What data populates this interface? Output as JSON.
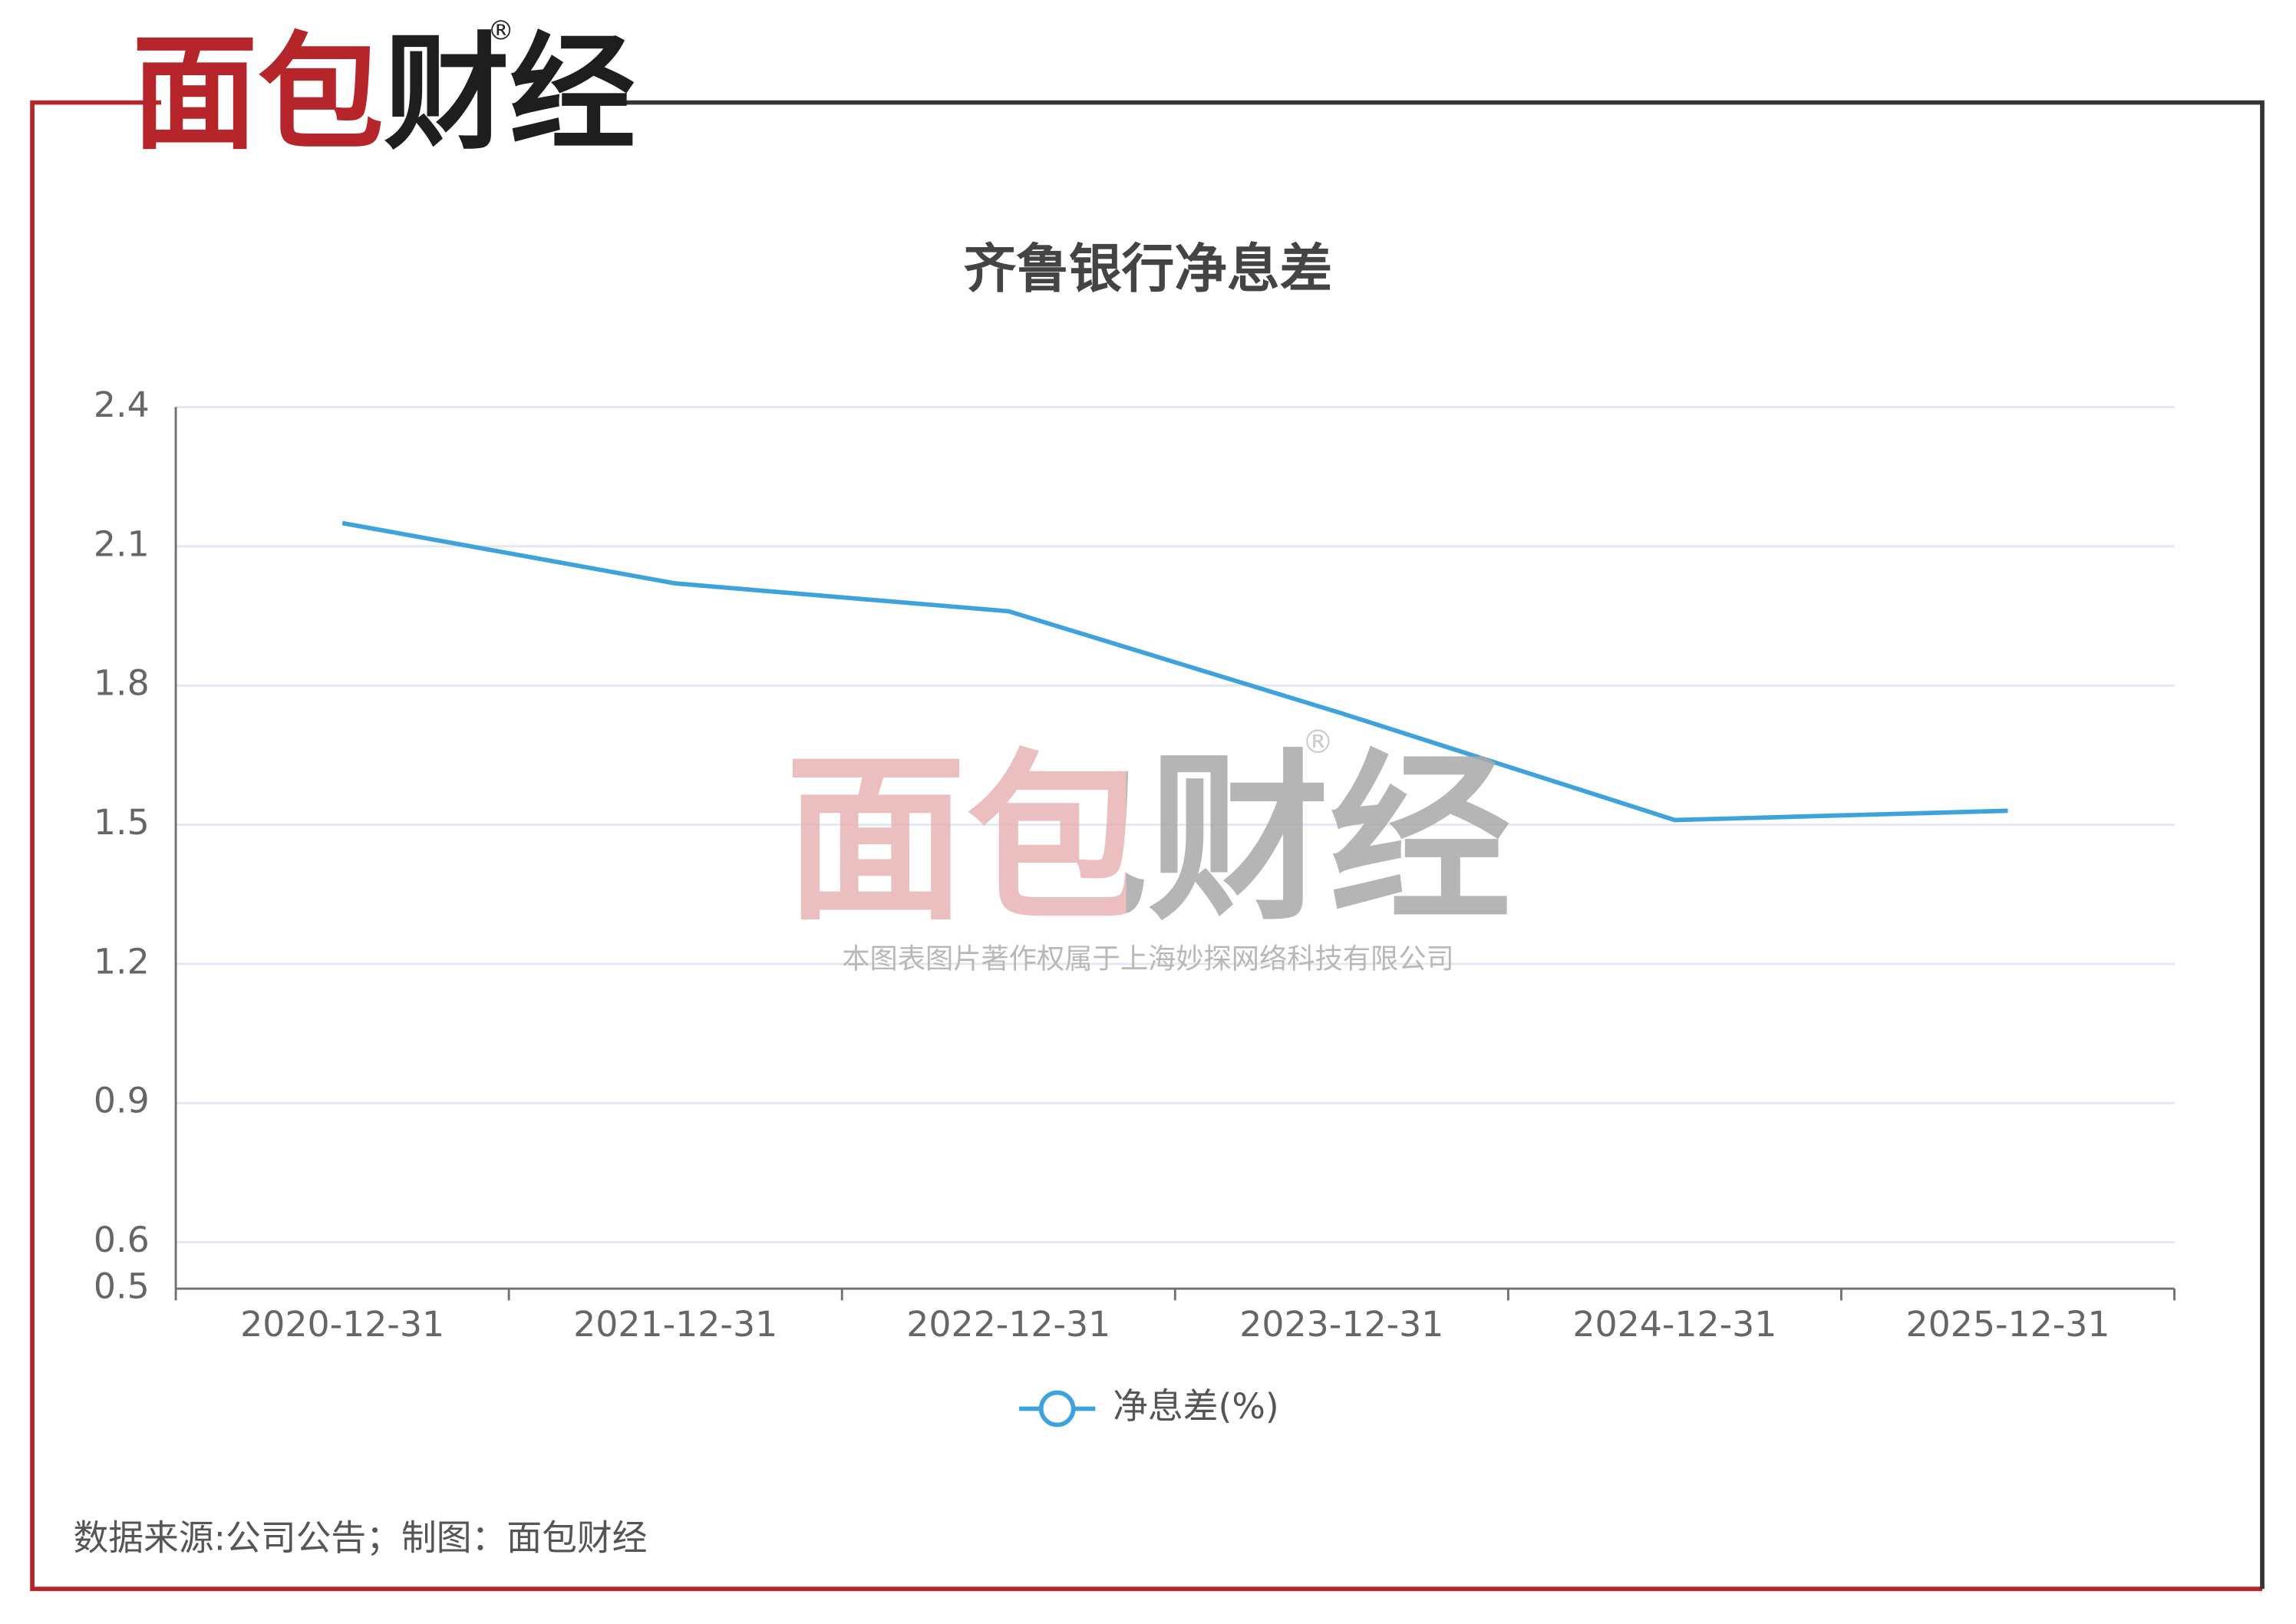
{
  "logo": "面包财经",
  "registered": "®",
  "watermark": {
    "logo": "面包财经",
    "registered": "®",
    "notice": "本图表图片著作权属于上海妙探网络科技有限公司"
  },
  "footer": "数据来源:公司公告；制图：面包财经",
  "chart_data": {
    "type": "line",
    "title": "齐鲁银行净息差",
    "categories": [
      "2020-12-31",
      "2021-12-31",
      "2022-12-31",
      "2023-12-31",
      "2024-12-31",
      "2025-12-31"
    ],
    "series": [
      {
        "name": "净息差(%)",
        "color": "#3ea2dc",
        "values": [
          2.15,
          2.02,
          1.96,
          1.74,
          1.51,
          1.53
        ]
      }
    ],
    "ylim": [
      0.5,
      2.4
    ],
    "yticks": [
      0.5,
      0.6,
      0.9,
      1.2,
      1.5,
      1.8,
      2.1,
      2.4
    ],
    "grid": true,
    "legend": "bottom"
  }
}
